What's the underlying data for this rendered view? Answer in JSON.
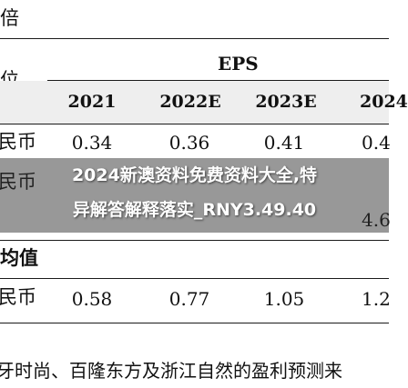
{
  "document": {
    "top_partial_label": "倍",
    "unit_label": "位",
    "header_group": "EPS",
    "years": [
      "2021",
      "2022E",
      "2023E",
      "2024"
    ],
    "row1": {
      "label": "民币",
      "values": [
        "0.34",
        "0.36",
        "0.41",
        "0.4"
      ]
    },
    "row2": {
      "label": "民币",
      "last_value": "4.6"
    },
    "section2_label": "均值",
    "row3": {
      "label": "民币",
      "values": [
        "0.58",
        "0.77",
        "1.05",
        "1.2"
      ]
    },
    "footer_text": "牙时尚、百隆东方及浙江自然的盈利预测来"
  },
  "overlay": {
    "line1": "2024新澳资料免费资料大全,特",
    "line2": "异解答解释落实_RNY3.49.40"
  }
}
